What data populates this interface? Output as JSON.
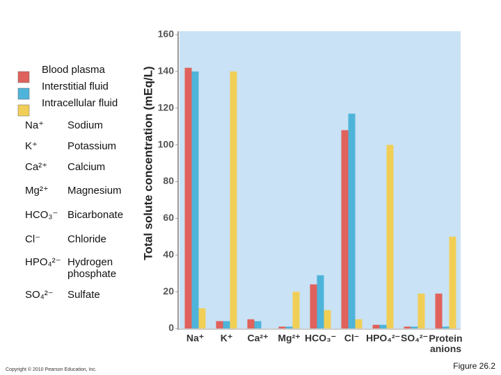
{
  "chart_data": {
    "type": "bar",
    "y_label": "Total solute concentration (mEq/L)",
    "categories": [
      "Na⁺",
      "K⁺",
      "Ca²⁺",
      "Mg²⁺",
      "HCO₃⁻",
      "Cl⁻",
      "HPO₄²⁻",
      "SO₄²⁻",
      "Protein anions"
    ],
    "series": [
      {
        "name": "Blood plasma",
        "color": "#e0625c",
        "values": [
          142,
          4,
          5,
          1,
          24,
          108,
          2,
          1,
          19
        ]
      },
      {
        "name": "Interstitial fluid",
        "color": "#4fb4da",
        "values": [
          140,
          4,
          4,
          1,
          29,
          117,
          2,
          1,
          1
        ]
      },
      {
        "name": "Intracellular fluid",
        "color": "#f1cf57",
        "values": [
          11,
          140,
          0,
          20,
          10,
          5,
          100,
          19,
          50
        ]
      }
    ],
    "ylim": [
      0,
      160
    ],
    "yticks": [
      0,
      20,
      40,
      60,
      80,
      100,
      120,
      140,
      160
    ],
    "grid": false
  },
  "key": [
    {
      "symbol": "Na⁺",
      "name": "Sodium"
    },
    {
      "symbol": "K⁺",
      "name": "Potassium"
    },
    {
      "symbol": "Ca²⁺",
      "name": "Calcium"
    },
    {
      "symbol": "Mg²⁺",
      "name": "Magnesium"
    },
    {
      "symbol": "HCO₃⁻",
      "name": "Bicarbonate"
    },
    {
      "symbol": "Cl⁻",
      "name": "Chloride"
    },
    {
      "symbol": "HPO₄²⁻",
      "name": "Hydrogen phosphate"
    },
    {
      "symbol": "SO₄²⁻",
      "name": "Sulfate"
    }
  ],
  "footer": {
    "copyright": "Copyright © 2010 Pearson Education, Inc.",
    "figure": "Figure 26.2"
  }
}
